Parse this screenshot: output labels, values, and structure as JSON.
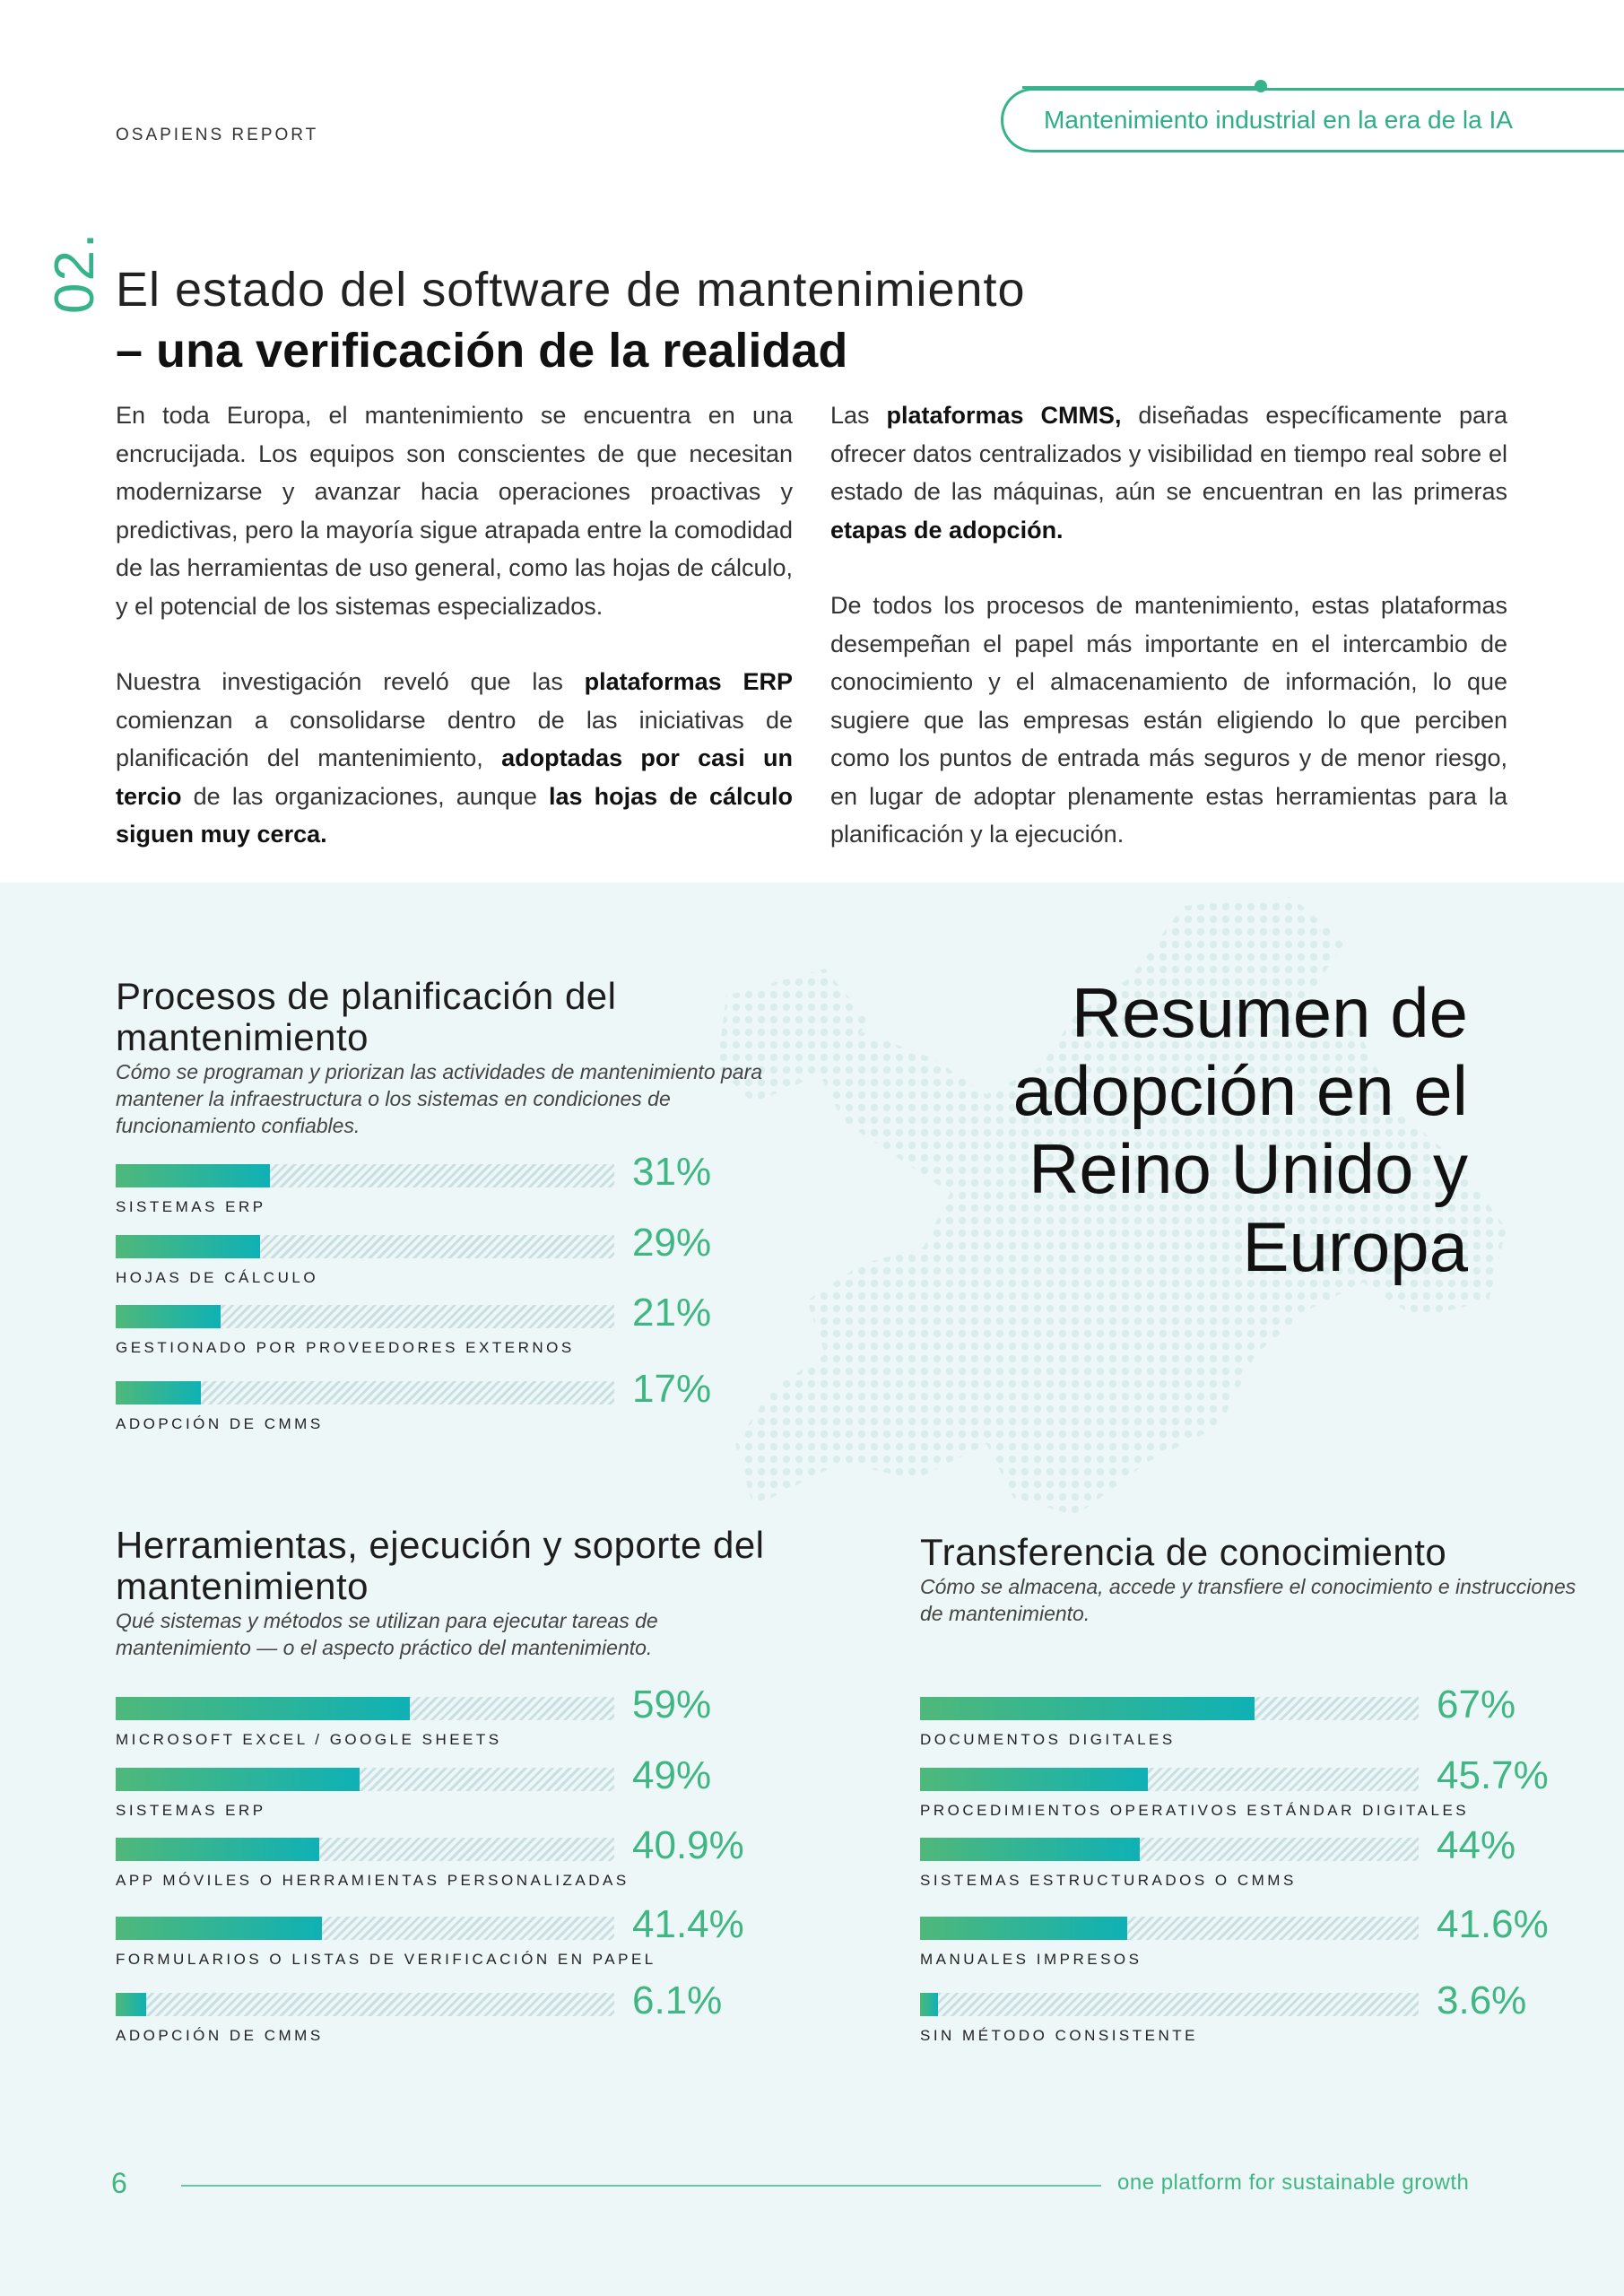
{
  "header": {
    "report_label": "OSAPIENS REPORT",
    "pill_text": "Mantenimiento industrial en la era de la IA"
  },
  "section": {
    "number": "02.",
    "title_line1": "El estado del software de mantenimiento",
    "title_line2": "– una verificación de la realidad"
  },
  "body": {
    "left_p1": "En toda Europa, el mantenimiento se encuentra en una encrucijada. Los equipos son conscientes de que necesitan modernizarse y avanzar hacia operaciones proactivas y predictivas, pero la mayoría sigue atrapada entre la comodidad de las herramientas de uso general, como las hojas de cálculo, y el potencial de los sistemas especializados.",
    "left_p2_a": "Nuestra investigación reveló que las ",
    "left_p2_b": "plataformas ERP",
    "left_p2_c": " comienzan a consolidarse dentro de las iniciativas de planificación del mantenimiento, ",
    "left_p2_d": "adoptadas por casi un tercio",
    "left_p2_e": " de las organizaciones, aunque ",
    "left_p2_f": "las hojas de cálculo siguen muy cerca.",
    "right_p1_a": "Las ",
    "right_p1_b": "plataformas CMMS,",
    "right_p1_c": " diseñadas específicamente para ofrecer datos centralizados y visibilidad en tiempo real sobre el estado de las máquinas, aún se encuentran en las primeras ",
    "right_p1_d": "etapas de adopción.",
    "right_p2": "De todos los procesos de mantenimiento, estas plataformas desempeñan el papel más importante en el intercambio de conocimiento y el almacenamiento de información, lo que sugiere que las empresas están eligiendo lo que perciben como los puntos de entrada más seguros y de menor riesgo, en lugar de adoptar plenamente estas herramientas para la planificación y la ejecución."
  },
  "resumen": {
    "line1": "Resumen de",
    "line2": "adopción en el",
    "line3": "Reino Unido y",
    "line4": "Europa"
  },
  "chart_data": [
    {
      "type": "bar",
      "title": "Procesos de planificación del mantenimiento",
      "subtitle": "Cómo se programan y priorizan las actividades de mantenimiento para mantener la infraestructura o los sistemas en condiciones de funcionamiento confiables.",
      "categories": [
        "SISTEMAS ERP",
        "HOJAS DE CÁLCULO",
        "GESTIONADO POR PROVEEDORES EXTERNOS",
        "ADOPCIÓN DE CMMS"
      ],
      "values": [
        31,
        29,
        21,
        17
      ],
      "labels": [
        "31%",
        "29%",
        "21%",
        "17%"
      ],
      "ylim": [
        0,
        100
      ]
    },
    {
      "type": "bar",
      "title": "Herramientas, ejecución y soporte del mantenimiento",
      "subtitle": "Qué sistemas y métodos se utilizan para ejecutar tareas de mantenimiento — o el aspecto práctico del mantenimiento.",
      "categories": [
        "MICROSOFT EXCEL / GOOGLE SHEETS",
        "SISTEMAS ERP",
        "APP MÓVILES O HERRAMIENTAS PERSONALIZADAS",
        "FORMULARIOS O LISTAS DE VERIFICACIÓN EN PAPEL",
        "ADOPCIÓN DE CMMS"
      ],
      "values": [
        59,
        49,
        40.9,
        41.4,
        6.1
      ],
      "labels": [
        "59%",
        "49%",
        "40.9%",
        "41.4%",
        "6.1%"
      ],
      "ylim": [
        0,
        100
      ]
    },
    {
      "type": "bar",
      "title": "Transferencia de conocimiento",
      "subtitle": "Cómo se almacena, accede y transfiere el conocimiento e instrucciones de mantenimiento.",
      "categories": [
        "DOCUMENTOS DIGITALES",
        "PROCEDIMIENTOS OPERATIVOS ESTÁNDAR DIGITALES",
        "SISTEMAS ESTRUCTURADOS O CMMS",
        "MANUALES IMPRESOS",
        "SIN MÉTODO CONSISTENTE"
      ],
      "values": [
        67,
        45.7,
        44,
        41.6,
        3.6
      ],
      "labels": [
        "67%",
        "45.7%",
        "44%",
        "41.6%",
        "3.6%"
      ],
      "ylim": [
        0,
        100
      ]
    }
  ],
  "footer": {
    "page_number": "6",
    "tagline": "one platform for sustainable growth"
  },
  "colors": {
    "accent": "#36b38a",
    "bar_start": "#4fb87a",
    "bar_end": "#0fb1b5",
    "panel_bg": "#eef7f7"
  }
}
